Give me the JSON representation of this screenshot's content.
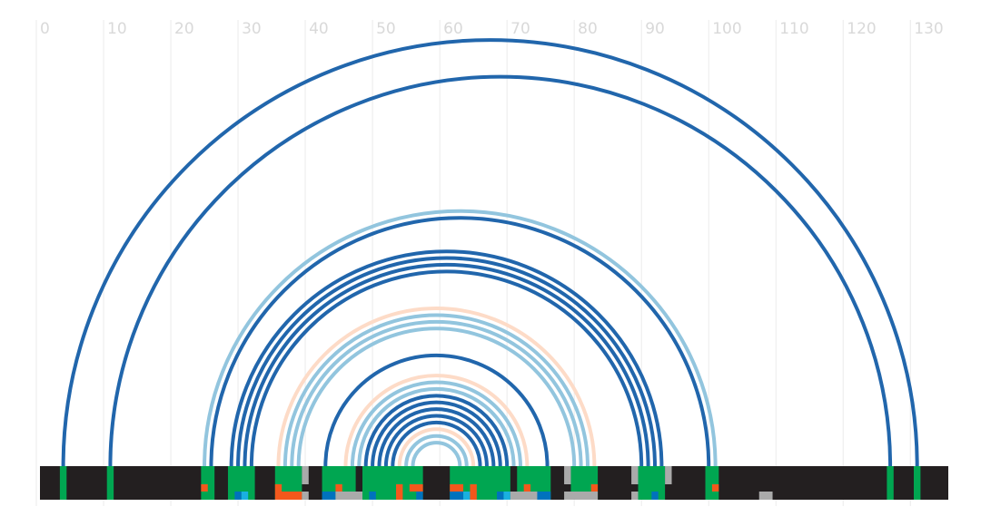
{
  "chart_data": {
    "type": "arc",
    "xlim": [
      0,
      135.5
    ],
    "xticks": [
      0,
      10,
      20,
      30,
      40,
      50,
      60,
      70,
      80,
      90,
      100,
      110,
      120,
      130
    ],
    "grid": true,
    "track_color": "#231f20",
    "arcs": [
      {
        "start": 4,
        "end": 131,
        "color": "#2166ac"
      },
      {
        "start": 11,
        "end": 127,
        "color": "#2166ac"
      },
      {
        "start": 25,
        "end": 101,
        "color": "#92c5de"
      },
      {
        "start": 26,
        "end": 100,
        "color": "#2166ac"
      },
      {
        "start": 29,
        "end": 93,
        "color": "#2166ac"
      },
      {
        "start": 30,
        "end": 92,
        "color": "#2166ac"
      },
      {
        "start": 31,
        "end": 91,
        "color": "#2166ac"
      },
      {
        "start": 32,
        "end": 90,
        "color": "#2166ac"
      },
      {
        "start": 36,
        "end": 83,
        "color": "#fddbc7"
      },
      {
        "start": 37,
        "end": 82,
        "color": "#92c5de"
      },
      {
        "start": 38,
        "end": 81,
        "color": "#92c5de"
      },
      {
        "start": 39,
        "end": 80,
        "color": "#92c5de"
      },
      {
        "start": 43,
        "end": 76,
        "color": "#2166ac"
      },
      {
        "start": 46,
        "end": 73,
        "color": "#fddbc7"
      },
      {
        "start": 47,
        "end": 72,
        "color": "#92c5de"
      },
      {
        "start": 48,
        "end": 71,
        "color": "#92c5de"
      },
      {
        "start": 49,
        "end": 70,
        "color": "#2166ac"
      },
      {
        "start": 50,
        "end": 69,
        "color": "#2166ac"
      },
      {
        "start": 51,
        "end": 68,
        "color": "#2166ac"
      },
      {
        "start": 52,
        "end": 67,
        "color": "#2166ac"
      },
      {
        "start": 53,
        "end": 66,
        "color": "#2166ac"
      },
      {
        "start": 54,
        "end": 65,
        "color": "#fddbc7"
      },
      {
        "start": 55,
        "end": 64,
        "color": "#92c5de"
      },
      {
        "start": 56,
        "end": 63,
        "color": "#92c5de"
      }
    ],
    "cells": [
      {
        "start": 3.5,
        "end": 4.5,
        "color": "#00a651",
        "row": "full"
      },
      {
        "start": 10.5,
        "end": 11.5,
        "color": "#00a651",
        "row": "full"
      },
      {
        "start": 24.5,
        "end": 26.5,
        "color": "#00a651",
        "row": "full"
      },
      {
        "start": 28.5,
        "end": 32.5,
        "color": "#00a651",
        "row": "full"
      },
      {
        "start": 35.5,
        "end": 39.5,
        "color": "#00a651",
        "row": "full"
      },
      {
        "start": 42.5,
        "end": 47.5,
        "color": "#00a651",
        "row": "full"
      },
      {
        "start": 48.5,
        "end": 57.5,
        "color": "#00a651",
        "row": "full"
      },
      {
        "start": 61.5,
        "end": 70.5,
        "color": "#00a651",
        "row": "full"
      },
      {
        "start": 71.5,
        "end": 76.5,
        "color": "#00a651",
        "row": "full"
      },
      {
        "start": 79.5,
        "end": 83.5,
        "color": "#00a651",
        "row": "full"
      },
      {
        "start": 89.5,
        "end": 93.5,
        "color": "#00a651",
        "row": "full"
      },
      {
        "start": 99.5,
        "end": 101.5,
        "color": "#00a651",
        "row": "full"
      },
      {
        "start": 126.5,
        "end": 127.5,
        "color": "#00a651",
        "row": "full"
      },
      {
        "start": 130.5,
        "end": 131.5,
        "color": "#00a651",
        "row": "full"
      },
      {
        "start": 24.5,
        "end": 25.5,
        "color": "#f4581c",
        "row": "middle"
      },
      {
        "start": 29.5,
        "end": 30.5,
        "color": "#0072bd",
        "row": "bottom"
      },
      {
        "start": 30.5,
        "end": 31.5,
        "color": "#1ab0e0",
        "row": "bottom"
      },
      {
        "start": 35.5,
        "end": 36.5,
        "color": "#f4581c",
        "row": "middle"
      },
      {
        "start": 35.5,
        "end": 39.5,
        "color": "#f4581c",
        "row": "bottom"
      },
      {
        "start": 39.5,
        "end": 40.5,
        "color": "#aaaaaa",
        "row": "upper"
      },
      {
        "start": 39.5,
        "end": 40.5,
        "color": "#aaaaaa",
        "row": "bottom"
      },
      {
        "start": 44.5,
        "end": 45.5,
        "color": "#f4581c",
        "row": "middle"
      },
      {
        "start": 42.5,
        "end": 44.5,
        "color": "#0072bd",
        "row": "bottom"
      },
      {
        "start": 44.5,
        "end": 48.5,
        "color": "#aaaaaa",
        "row": "bottom"
      },
      {
        "start": 49.5,
        "end": 50.5,
        "color": "#0072bd",
        "row": "bottom"
      },
      {
        "start": 53.5,
        "end": 54.5,
        "color": "#f4581c",
        "row": "middle"
      },
      {
        "start": 53.5,
        "end": 54.5,
        "color": "#f4581c",
        "row": "bottom"
      },
      {
        "start": 55.5,
        "end": 57.5,
        "color": "#f4581c",
        "row": "middle"
      },
      {
        "start": 56.5,
        "end": 57.5,
        "color": "#0072bd",
        "row": "bottom"
      },
      {
        "start": 61.5,
        "end": 63.5,
        "color": "#f4581c",
        "row": "middle"
      },
      {
        "start": 61.5,
        "end": 63.5,
        "color": "#0072bd",
        "row": "bottom"
      },
      {
        "start": 63.5,
        "end": 64.5,
        "color": "#1ab0e0",
        "row": "bottom"
      },
      {
        "start": 64.5,
        "end": 65.5,
        "color": "#f4581c",
        "row": "middle"
      },
      {
        "start": 64.5,
        "end": 65.5,
        "color": "#f4581c",
        "row": "bottom"
      },
      {
        "start": 68.5,
        "end": 69.5,
        "color": "#0072bd",
        "row": "bottom"
      },
      {
        "start": 69.5,
        "end": 70.5,
        "color": "#1ab0e0",
        "row": "bottom"
      },
      {
        "start": 70.5,
        "end": 74.5,
        "color": "#aaaaaa",
        "row": "bottom"
      },
      {
        "start": 72.5,
        "end": 73.5,
        "color": "#f4581c",
        "row": "middle"
      },
      {
        "start": 74.5,
        "end": 76.5,
        "color": "#0072bd",
        "row": "bottom"
      },
      {
        "start": 78.5,
        "end": 79.5,
        "color": "#aaaaaa",
        "row": "upper"
      },
      {
        "start": 78.5,
        "end": 83.5,
        "color": "#aaaaaa",
        "row": "bottom"
      },
      {
        "start": 82.5,
        "end": 83.5,
        "color": "#f4581c",
        "row": "middle"
      },
      {
        "start": 88.5,
        "end": 89.5,
        "color": "#aaaaaa",
        "row": "upper"
      },
      {
        "start": 88.5,
        "end": 89.5,
        "color": "#aaaaaa",
        "row": "bottom"
      },
      {
        "start": 91.5,
        "end": 92.5,
        "color": "#0072bd",
        "row": "bottom"
      },
      {
        "start": 93.5,
        "end": 94.5,
        "color": "#aaaaaa",
        "row": "upper"
      },
      {
        "start": 100.5,
        "end": 101.5,
        "color": "#f4581c",
        "row": "middle"
      },
      {
        "start": 107.5,
        "end": 109.5,
        "color": "#aaaaaa",
        "row": "bottom"
      }
    ]
  }
}
